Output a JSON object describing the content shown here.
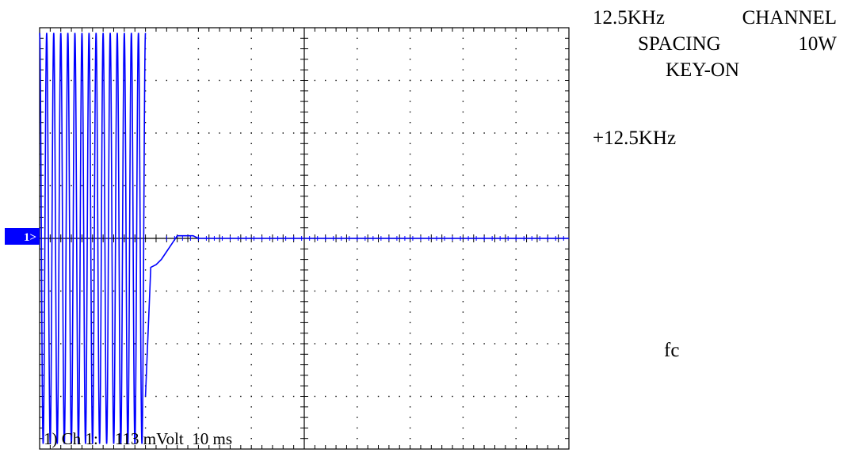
{
  "title_lines": [
    {
      "left": "12.5KHz",
      "right": "CHANNEL"
    },
    {
      "left": "SPACING",
      "right": "10W"
    },
    {
      "center": "KEY-ON"
    }
  ],
  "offset_label": "+12.5KHz",
  "center_label": "fc",
  "channel_marker": "1>",
  "settings_readout": "1) Ch 1:    113 mVolt  10 ms",
  "colors": {
    "trace": "#0000ff",
    "marker_bg": "#0000ff",
    "grid": "#000000",
    "background": "#ffffff"
  },
  "chart_data": {
    "type": "line",
    "title": "12.5KHz CHANNEL SPACING 10W KEY-ON",
    "grid": true,
    "grid_divisions": {
      "x": 10,
      "y": 8
    },
    "time_per_div_ms": 10,
    "volts_per_div_mV": 113,
    "x_range_ms": [
      0,
      100
    ],
    "y_range_div": [
      -4,
      4
    ],
    "series": [
      {
        "segment": "oscillation",
        "x_ms": [
          0,
          20
        ],
        "amplitude_div": 3.9,
        "cycles": 15
      },
      {
        "segment": "settling",
        "x_ms": [
          20,
          21,
          22,
          23,
          24,
          25,
          26,
          27,
          28,
          29,
          30,
          31,
          32,
          100
        ],
        "y_div": [
          -3.0,
          -0.55,
          -0.5,
          -0.4,
          -0.25,
          -0.1,
          0.05,
          0.05,
          0.05,
          0.05,
          0.0,
          0.0,
          0.0,
          0.0
        ]
      }
    ]
  }
}
